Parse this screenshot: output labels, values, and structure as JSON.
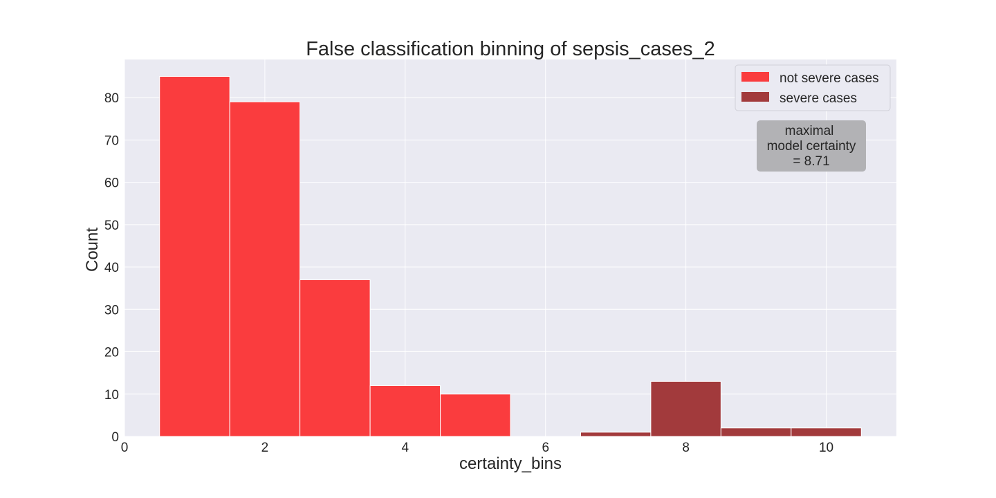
{
  "chart_data": {
    "type": "bar",
    "title": "False classification binning of sepsis_cases_2",
    "xlabel": "certainty_bins",
    "ylabel": "Count",
    "xlim": [
      0,
      11
    ],
    "ylim": [
      0,
      89
    ],
    "xticks": [
      0,
      2,
      4,
      6,
      8,
      10
    ],
    "yticks": [
      0,
      10,
      20,
      30,
      40,
      50,
      60,
      70,
      80
    ],
    "grid": true,
    "legend_position": "upper-right",
    "series": [
      {
        "name": "not severe cases",
        "color": "#fa3c3e",
        "x": [
          1,
          2,
          3,
          4,
          5
        ],
        "values": [
          85,
          79,
          37,
          12,
          10
        ]
      },
      {
        "name": "severe cases",
        "color": "#a23a3c",
        "x": [
          7,
          8,
          9,
          10
        ],
        "values": [
          1,
          13,
          2,
          2
        ]
      }
    ],
    "annotation": {
      "lines": [
        "maximal",
        "model certainty",
        "= 8.71"
      ]
    },
    "colors": {
      "background": "#eaeaf2",
      "grid": "#ffffff",
      "annotation_box": "#b2b2b5"
    }
  }
}
